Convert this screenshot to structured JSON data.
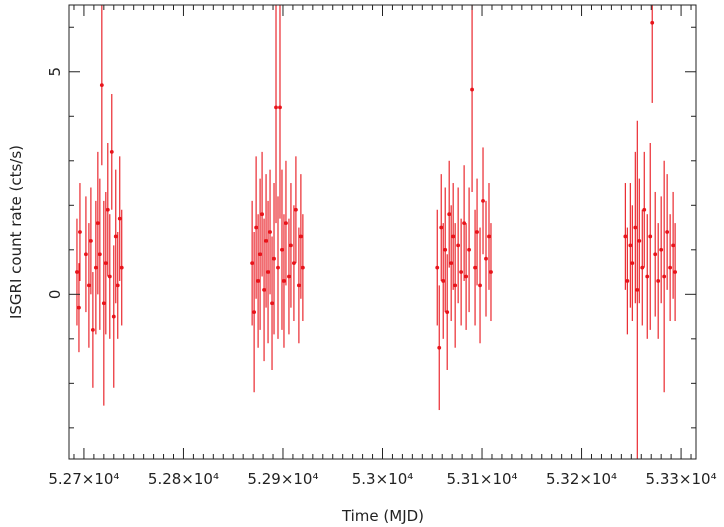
{
  "chart_data": {
    "type": "scatter",
    "style": "error-bars",
    "title": "",
    "xlabel": "Time (MJD)",
    "ylabel": "ISGRI count rate (cts/s)",
    "xlim": [
      52685,
      53315
    ],
    "ylim": [
      -3.7,
      6.5
    ],
    "grid": false,
    "x_ticks": [
      {
        "value": 52700,
        "label": "5.27×10⁴"
      },
      {
        "value": 52800,
        "label": "5.28×10⁴"
      },
      {
        "value": 52900,
        "label": "5.29×10⁴"
      },
      {
        "value": 53000,
        "label": "5.3×10⁴"
      },
      {
        "value": 53100,
        "label": "5.31×10⁴"
      },
      {
        "value": 53200,
        "label": "5.32×10⁴"
      },
      {
        "value": 53300,
        "label": "5.33×10⁴"
      }
    ],
    "y_ticks": [
      {
        "value": 0,
        "label": "0"
      },
      {
        "value": 5,
        "label": "5"
      }
    ],
    "series": [
      {
        "color": "#e8141b",
        "points": [
          {
            "x": 52693,
            "y": 0.5,
            "err": 1.2
          },
          {
            "x": 52695,
            "y": -0.3,
            "err": 1.0
          },
          {
            "x": 52696,
            "y": 1.4,
            "err": 1.1
          },
          {
            "x": 52702,
            "y": 0.9,
            "err": 1.3
          },
          {
            "x": 52705,
            "y": 0.2,
            "err": 1.4
          },
          {
            "x": 52707,
            "y": 1.2,
            "err": 1.2
          },
          {
            "x": 52709,
            "y": -0.8,
            "err": 1.3
          },
          {
            "x": 52712,
            "y": 0.6,
            "err": 1.5
          },
          {
            "x": 52714,
            "y": 1.6,
            "err": 1.6
          },
          {
            "x": 52716,
            "y": 0.9,
            "err": 1.7
          },
          {
            "x": 52718,
            "y": 4.7,
            "err": 1.8
          },
          {
            "x": 52720,
            "y": -0.2,
            "err": 2.3
          },
          {
            "x": 52722,
            "y": 0.7,
            "err": 1.6
          },
          {
            "x": 52724,
            "y": 1.9,
            "err": 1.5
          },
          {
            "x": 52726,
            "y": 0.4,
            "err": 1.4
          },
          {
            "x": 52728,
            "y": 3.2,
            "err": 1.3
          },
          {
            "x": 52730,
            "y": -0.5,
            "err": 1.6
          },
          {
            "x": 52732,
            "y": 1.3,
            "err": 1.5
          },
          {
            "x": 52734,
            "y": 0.2,
            "err": 1.2
          },
          {
            "x": 52736,
            "y": 1.7,
            "err": 1.4
          },
          {
            "x": 52738,
            "y": 0.6,
            "err": 1.3
          },
          {
            "x": 52869,
            "y": 0.7,
            "err": 1.4
          },
          {
            "x": 52871,
            "y": -0.4,
            "err": 1.8
          },
          {
            "x": 52873,
            "y": 1.5,
            "err": 1.6
          },
          {
            "x": 52875,
            "y": 0.3,
            "err": 1.5
          },
          {
            "x": 52877,
            "y": 0.9,
            "err": 1.7
          },
          {
            "x": 52879,
            "y": 1.8,
            "err": 1.4
          },
          {
            "x": 52881,
            "y": 0.1,
            "err": 1.6
          },
          {
            "x": 52883,
            "y": 1.2,
            "err": 1.5
          },
          {
            "x": 52885,
            "y": 0.5,
            "err": 1.6
          },
          {
            "x": 52887,
            "y": 1.4,
            "err": 1.4
          },
          {
            "x": 52889,
            "y": -0.2,
            "err": 1.5
          },
          {
            "x": 52891,
            "y": 0.8,
            "err": 1.7
          },
          {
            "x": 52893,
            "y": 4.2,
            "err": 2.6
          },
          {
            "x": 52895,
            "y": 0.6,
            "err": 1.6
          },
          {
            "x": 52897,
            "y": 4.2,
            "err": 2.5
          },
          {
            "x": 52899,
            "y": 1.0,
            "err": 1.8
          },
          {
            "x": 52901,
            "y": 0.3,
            "err": 1.5
          },
          {
            "x": 52903,
            "y": 1.6,
            "err": 1.4
          },
          {
            "x": 52906,
            "y": 0.4,
            "err": 1.3
          },
          {
            "x": 52908,
            "y": 1.1,
            "err": 1.4
          },
          {
            "x": 52911,
            "y": 0.7,
            "err": 1.3
          },
          {
            "x": 52913,
            "y": 1.9,
            "err": 1.2
          },
          {
            "x": 52916,
            "y": 0.2,
            "err": 1.3
          },
          {
            "x": 52918,
            "y": 1.3,
            "err": 1.4
          },
          {
            "x": 52920,
            "y": 0.6,
            "err": 1.2
          },
          {
            "x": 53055,
            "y": 0.6,
            "err": 1.3
          },
          {
            "x": 53057,
            "y": -1.2,
            "err": 1.4
          },
          {
            "x": 53059,
            "y": 1.5,
            "err": 1.2
          },
          {
            "x": 53061,
            "y": 0.3,
            "err": 1.3
          },
          {
            "x": 53063,
            "y": 1.0,
            "err": 1.4
          },
          {
            "x": 53065,
            "y": -0.4,
            "err": 1.3
          },
          {
            "x": 53067,
            "y": 1.8,
            "err": 1.2
          },
          {
            "x": 53069,
            "y": 0.7,
            "err": 1.3
          },
          {
            "x": 53071,
            "y": 1.3,
            "err": 1.2
          },
          {
            "x": 53073,
            "y": 0.2,
            "err": 1.4
          },
          {
            "x": 53076,
            "y": 1.1,
            "err": 1.3
          },
          {
            "x": 53079,
            "y": 0.5,
            "err": 1.2
          },
          {
            "x": 53082,
            "y": 1.6,
            "err": 1.3
          },
          {
            "x": 53084,
            "y": 0.4,
            "err": 1.2
          },
          {
            "x": 53087,
            "y": 1.0,
            "err": 1.4
          },
          {
            "x": 53090,
            "y": 4.6,
            "err": 2.3
          },
          {
            "x": 53093,
            "y": 0.6,
            "err": 1.3
          },
          {
            "x": 53095,
            "y": 1.4,
            "err": 1.2
          },
          {
            "x": 53098,
            "y": 0.2,
            "err": 1.3
          },
          {
            "x": 53101,
            "y": 2.1,
            "err": 1.2
          },
          {
            "x": 53104,
            "y": 0.8,
            "err": 1.3
          },
          {
            "x": 53107,
            "y": 1.3,
            "err": 1.2
          },
          {
            "x": 53109,
            "y": 0.5,
            "err": 1.1
          },
          {
            "x": 53244,
            "y": 1.3,
            "err": 1.2
          },
          {
            "x": 53246,
            "y": 0.3,
            "err": 1.2
          },
          {
            "x": 53249,
            "y": 1.1,
            "err": 1.4
          },
          {
            "x": 53251,
            "y": 0.7,
            "err": 1.3
          },
          {
            "x": 53254,
            "y": 1.5,
            "err": 1.7
          },
          {
            "x": 53256,
            "y": 0.1,
            "err": 3.8
          },
          {
            "x": 53258,
            "y": 1.2,
            "err": 1.4
          },
          {
            "x": 53261,
            "y": 0.6,
            "err": 1.3
          },
          {
            "x": 53263,
            "y": 1.9,
            "err": 1.3
          },
          {
            "x": 53266,
            "y": 0.4,
            "err": 1.4
          },
          {
            "x": 53269,
            "y": 1.3,
            "err": 2.1
          },
          {
            "x": 53271,
            "y": 6.1,
            "err": 1.8
          },
          {
            "x": 53274,
            "y": 0.9,
            "err": 1.4
          },
          {
            "x": 53277,
            "y": 0.3,
            "err": 1.3
          },
          {
            "x": 53280,
            "y": 1.0,
            "err": 1.2
          },
          {
            "x": 53283,
            "y": 0.4,
            "err": 2.6
          },
          {
            "x": 53286,
            "y": 1.4,
            "err": 1.3
          },
          {
            "x": 53289,
            "y": 0.6,
            "err": 1.2
          },
          {
            "x": 53292,
            "y": 1.1,
            "err": 1.2
          },
          {
            "x": 53294,
            "y": 0.5,
            "err": 1.1
          }
        ]
      }
    ]
  }
}
